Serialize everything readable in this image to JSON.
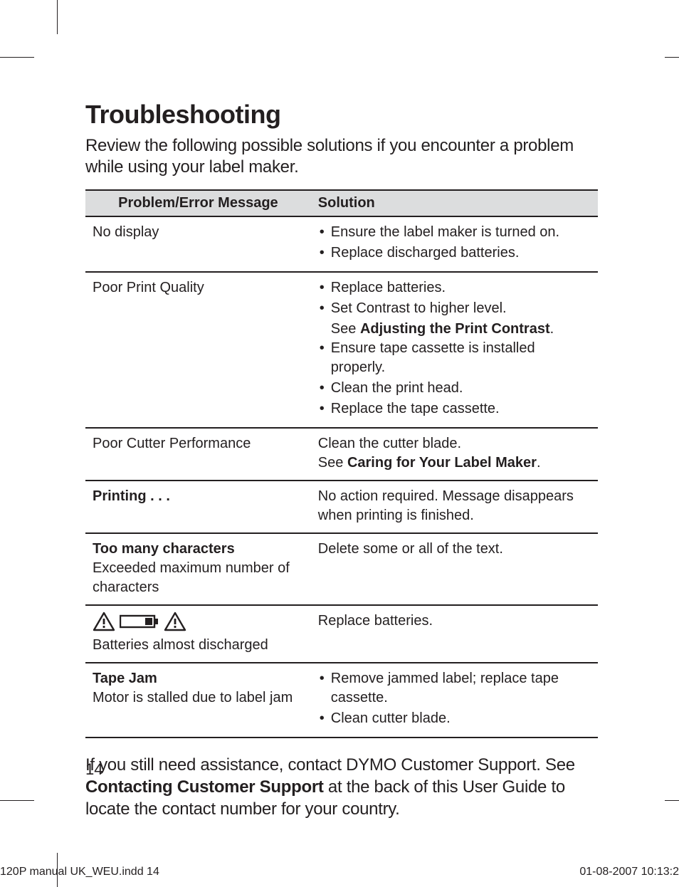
{
  "colors": {
    "text": "#231f20",
    "header_bg": "#dcddde",
    "rule": "#231f20",
    "page_bg": "#ffffff"
  },
  "title": "Troubleshooting",
  "intro": "Review the following possible solutions if you encounter a problem while using your label maker.",
  "table": {
    "columns": [
      "Problem/Error Message",
      "Solution"
    ],
    "rows": [
      {
        "problem": "No display",
        "solution_items": [
          "Ensure the label maker is turned on.",
          "Replace discharged batteries."
        ]
      },
      {
        "problem": "Poor Print Quality",
        "solution_items": [
          "Replace batteries.",
          "Set Contrast to higher level.",
          "Ensure tape cassette is installed properly.",
          "Clean the print head.",
          "Replace the tape cassette."
        ],
        "solution_subnote_after_item_index": 1,
        "solution_subnote_prefix": "See ",
        "solution_subnote_bold": "Adjusting the Print Contrast",
        "solution_subnote_suffix": "."
      },
      {
        "problem": "Poor Cutter Performance",
        "solution_text": "Clean the cutter blade.",
        "solution_note_prefix": "See ",
        "solution_note_bold": "Caring for Your Label Maker",
        "solution_note_suffix": "."
      },
      {
        "problem_bold": "Printing . . .",
        "solution_text": "No action required. Message disappears when printing is finished."
      },
      {
        "problem_bold": "Too many characters",
        "problem_sub": "Exceeded maximum number of characters",
        "solution_text": "Delete some or all of the text."
      },
      {
        "problem_icons": [
          "warning-icon",
          "battery-low-icon",
          "warning-icon"
        ],
        "problem_sub": "Batteries almost discharged",
        "solution_text": "Replace batteries."
      },
      {
        "problem_bold": "Tape Jam",
        "problem_sub": "Motor is stalled due to label jam",
        "solution_items": [
          "Remove jammed label; replace tape cassette.",
          "Clean cutter blade."
        ]
      }
    ]
  },
  "footer_paragraph": {
    "pre": "If you still need assistance, contact DYMO Customer Support. See ",
    "bold1": "Contacting Customer Support",
    "post": " at the back of this User Guide to locate the contact number for your country."
  },
  "page_number": "14",
  "slug_left": "120P manual UK_WEU.indd   14",
  "slug_right": "01-08-2007   10:13:2"
}
